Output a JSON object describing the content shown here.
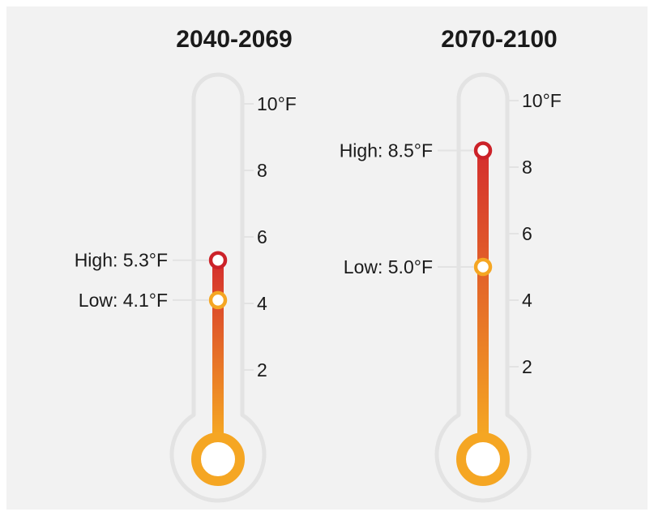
{
  "chart_data": {
    "type": "thermometer",
    "unit": "°F",
    "ylim": [
      0,
      10
    ],
    "ticks": [
      {
        "value": 2,
        "label": "2"
      },
      {
        "value": 4,
        "label": "4"
      },
      {
        "value": 6,
        "label": "6"
      },
      {
        "value": 8,
        "label": "8"
      },
      {
        "value": 10,
        "label": "10°F"
      }
    ],
    "panels": [
      {
        "title": "2040-2069",
        "high": {
          "value": 5.3,
          "label": "High: 5.3°F"
        },
        "low": {
          "value": 4.1,
          "label": "Low: 4.1°F"
        }
      },
      {
        "title": "2070-2100",
        "high": {
          "value": 8.5,
          "label": "High: 8.5°F"
        },
        "low": {
          "value": 5.0,
          "label": "Low: 5.0°F"
        }
      }
    ]
  },
  "colors": {
    "background": "#f2f2f2",
    "outline": "#e3e3e3",
    "gradient_bottom": "#f5a623",
    "gradient_top": "#d42e2e",
    "high_marker": "#cc2229",
    "low_marker": "#f5a623",
    "text": "#1a1a1a"
  }
}
